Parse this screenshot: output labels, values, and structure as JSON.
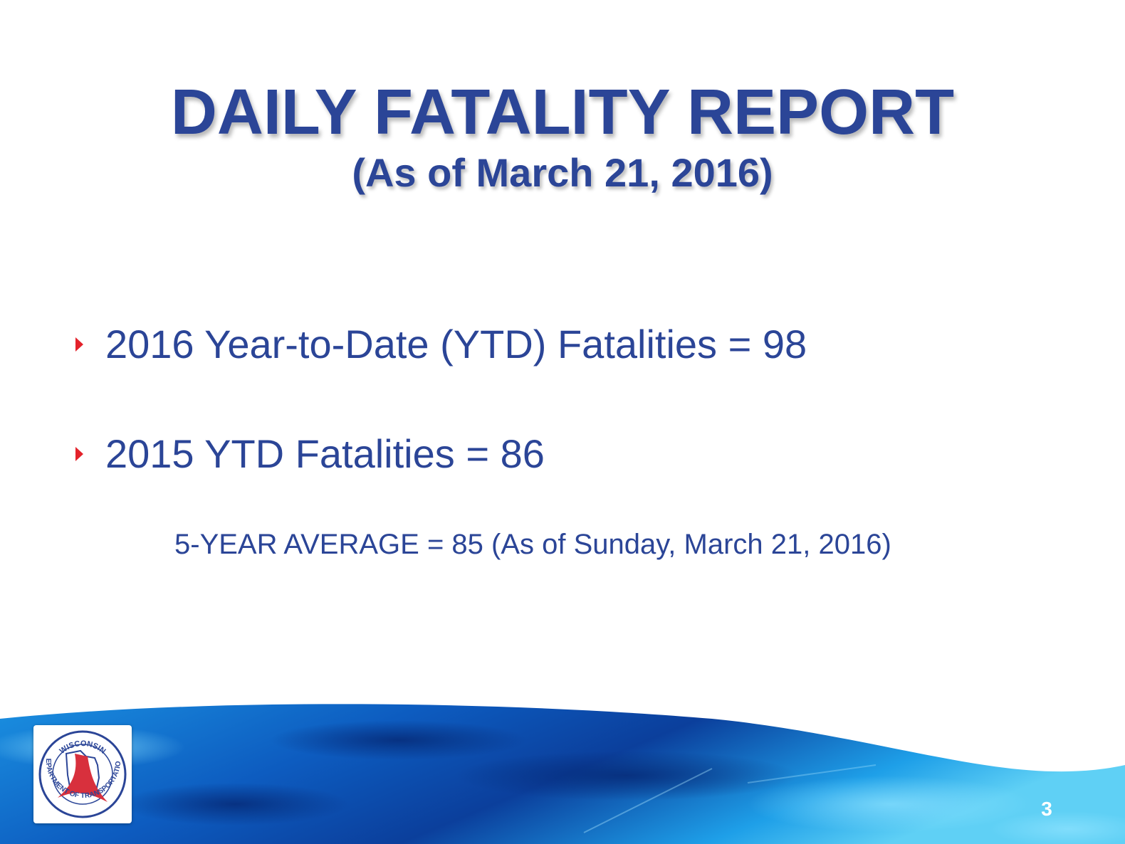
{
  "slide": {
    "title": "DAILY FATALITY REPORT",
    "subtitle": "(As of March 21, 2016)",
    "bullets": [
      "2016 Year-to-Date (YTD) Fatalities = 98",
      "2015 YTD Fatalities = 86"
    ],
    "note": "5-YEAR AVERAGE = 85 (As of Sunday, March 21, 2016)",
    "page_number": "3"
  },
  "logo": {
    "top_text": "WISCONSIN",
    "ring_text": "DEPARTMENT OF TRANSPORTATION"
  },
  "colors": {
    "title": "#2b4597",
    "bullet_marker": "#e3222b",
    "wave_light": "#1aa3ea",
    "wave_dark": "#0b3f9c",
    "logo_red": "#d8303d"
  }
}
